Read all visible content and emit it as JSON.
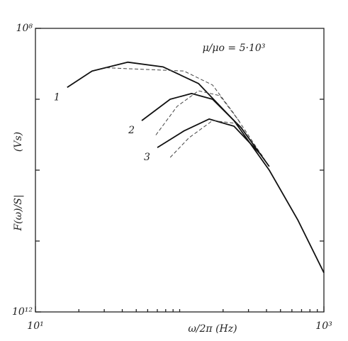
{
  "chart_data": {
    "type": "line",
    "xlabel": "ω/2π   (Hz)",
    "ylabel": "F(ω)/S|",
    "yunit": "(Vs)",
    "annotation": "μ/μo = 5·10³",
    "xscale": "log",
    "yscale": "log",
    "xlim": [
      10,
      1000
    ],
    "ylim": [
      1000000000000.0,
      100000000.0
    ],
    "xticks": [
      {
        "value": 10,
        "label": "10¹"
      },
      {
        "value": 1000,
        "label": "10³"
      }
    ],
    "xminor": [
      20,
      30,
      40,
      50,
      60,
      70,
      80,
      90,
      100,
      200,
      300,
      400,
      500,
      600,
      700,
      800,
      900
    ],
    "yticks": [
      {
        "value": 100000000.0,
        "label": "10⁸"
      },
      {
        "value": 1000000000000.0,
        "label": "10¹²"
      }
    ],
    "yminor": [
      1000000000.0,
      10000000000.0,
      100000000000.0
    ],
    "series": [
      {
        "name": "1",
        "color": "#111",
        "style": "solid",
        "x": [
          16.6,
          24.7,
          43.6,
          76.8,
          135,
          238,
          418,
          658,
          1000
        ],
        "values": [
          680000000.0,
          400000000.0,
          300000000.0,
          350000000.0,
          600000000.0,
          2000000000.0,
          10000000000.0,
          50000000000.0,
          280000000000.0
        ]
      },
      {
        "color": "#444",
        "style": "dashed",
        "x": [
          31,
          107,
          169,
          238,
          418
        ],
        "values": [
          360000000.0,
          400000000.0,
          630000000.0,
          1600000000.0,
          8900000000.0
        ]
      },
      {
        "name": "2",
        "color": "#111",
        "style": "solid",
        "x": [
          54.6,
          85.9,
          121,
          169,
          266,
          418
        ],
        "values": [
          2000000000.0,
          1000000000.0,
          830000000.0,
          1000000000.0,
          2500000000.0,
          8900000000.0
        ]
      },
      {
        "color": "#444",
        "style": "dashed",
        "x": [
          68.4,
          96,
          135,
          190,
          266
        ],
        "values": [
          3200000000.0,
          1260000000.0,
          760000000.0,
          890000000.0,
          2200000000.0
        ]
      },
      {
        "name": "3",
        "color": "#111",
        "style": "solid",
        "x": [
          70,
          107,
          160,
          238,
          373
        ],
        "values": [
          4800000000.0,
          2800000000.0,
          1900000000.0,
          2400000000.0,
          6300000000.0
        ]
      },
      {
        "color": "#444",
        "style": "dashed",
        "x": [
          86,
          116,
          169,
          250
        ],
        "values": [
          6600000000.0,
          3500000000.0,
          2000000000.0,
          2200000000.0
        ]
      }
    ]
  }
}
